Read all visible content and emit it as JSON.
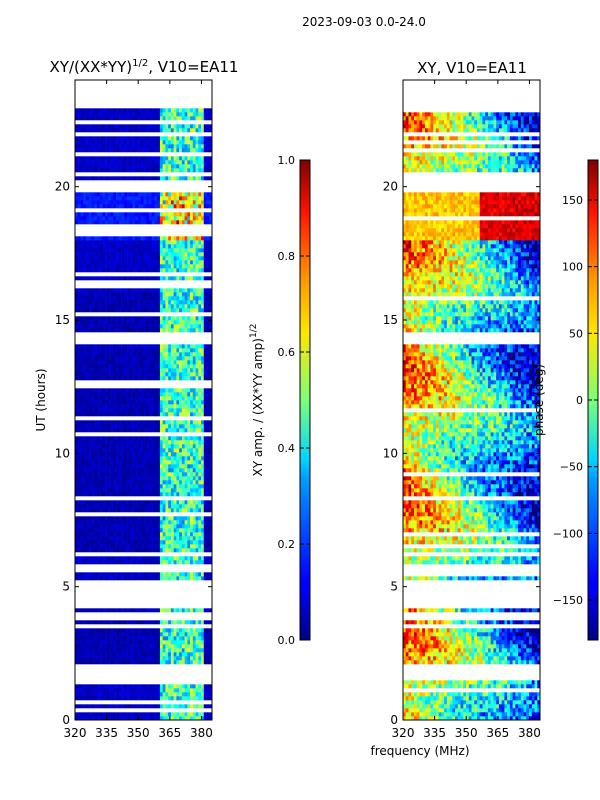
{
  "suptitle": "2023-09-03 0.0-24.0",
  "colors": {
    "background": "#ffffff",
    "panel_blank": "#ffffff",
    "axis": "#000000"
  },
  "chart_data": [
    {
      "type": "heatmap",
      "name": "amplitude",
      "title": "XY/(XX*YY)",
      "title_exponent": "1/2",
      "title_suffix": ", V10=EA11",
      "xlabel": "",
      "ylabel": "UT (hours)",
      "xlim": [
        320,
        385
      ],
      "ylim": [
        0,
        24
      ],
      "xticks": [
        320,
        335,
        350,
        365,
        380
      ],
      "yticks": [
        0,
        5,
        10,
        15,
        20
      ],
      "colorbar": {
        "label": "XY amp. / (XX*YY amp)",
        "label_exponent": "1/2",
        "vmin": 0.0,
        "vmax": 1.0,
        "ticks": [
          0.0,
          0.2,
          0.4,
          0.6,
          0.8,
          1.0
        ],
        "tick_labels": [
          "0.0",
          "0.2",
          "0.4",
          "0.6",
          "0.8",
          "1.0"
        ],
        "colormap": "jet"
      }
    },
    {
      "type": "heatmap",
      "name": "phase",
      "title": "XY, V10=EA11",
      "xlabel": "frequency (MHz)",
      "ylabel": "",
      "xlim": [
        320,
        385
      ],
      "ylim": [
        0,
        24
      ],
      "xticks": [
        320,
        335,
        350,
        365,
        380
      ],
      "yticks": [
        0,
        5,
        10,
        15,
        20
      ],
      "colorbar": {
        "label": "phase (deg)",
        "vmin": -180,
        "vmax": 180,
        "ticks": [
          150,
          100,
          50,
          0,
          -50,
          -100,
          -150
        ],
        "tick_labels": [
          "150",
          "100",
          "50",
          "0",
          "−50",
          "−100",
          "−150"
        ],
        "colormap": "jet"
      }
    }
  ],
  "flagged_hours": [
    [
      1.45,
      2.1
    ],
    [
      3.7,
      4.05
    ],
    [
      4.15,
      5.15
    ],
    [
      5.55,
      5.85
    ],
    [
      6.05,
      6.25
    ],
    [
      14.05,
      14.45
    ],
    [
      17.1,
      17.2
    ],
    [
      19.8,
      20.25
    ],
    [
      21.85,
      22.0
    ],
    [
      22.95,
      24.0
    ]
  ],
  "blue_band_hours": [
    [
      2.1,
      3.7
    ],
    [
      6.25,
      13.8
    ],
    [
      14.45,
      16.0
    ],
    [
      17.9,
      19.8
    ]
  ]
}
